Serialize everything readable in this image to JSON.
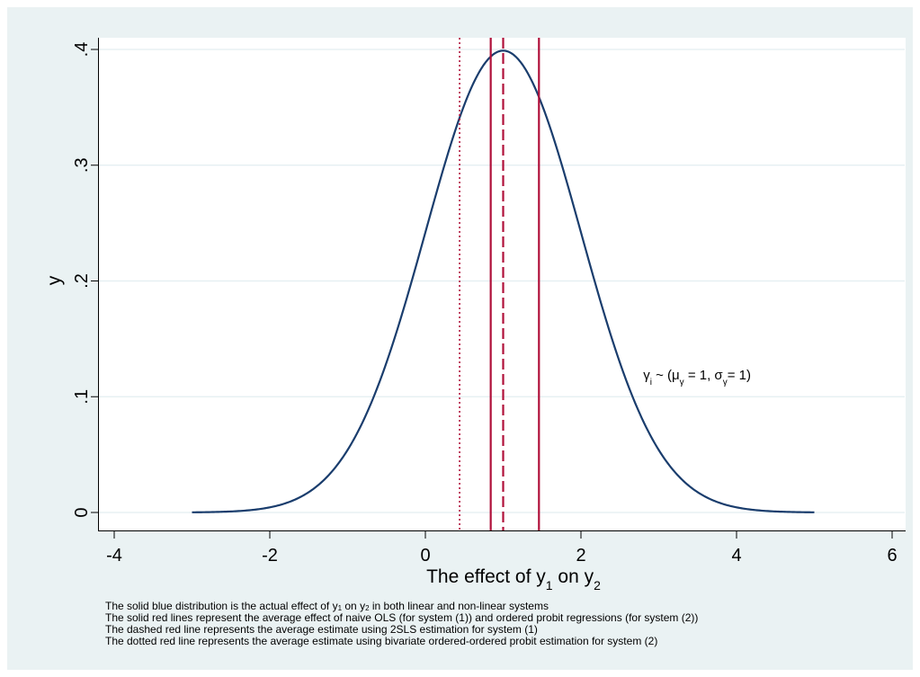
{
  "chart_data": {
    "type": "line",
    "xlabel_parts": [
      "The effect of y",
      "1",
      " on y",
      "2"
    ],
    "ylabel": "y",
    "xlim": [
      -4,
      6
    ],
    "ylim": [
      0,
      0.4
    ],
    "xticks": [
      -4,
      -2,
      0,
      2,
      4,
      6
    ],
    "xtick_labels": [
      "-4",
      "-2",
      "0",
      "2",
      "4",
      "6"
    ],
    "yticks": [
      0,
      0.1,
      0.2,
      0.3,
      0.4
    ],
    "ytick_labels": [
      "0",
      ".1",
      ".2",
      ".3",
      ".4"
    ],
    "grid": "horizontal",
    "series": [
      {
        "kind": "normal-density",
        "mean": 1,
        "sd": 1,
        "x_range": [
          -3,
          5
        ],
        "color": "#1a3d6d"
      }
    ],
    "vertical_lines": [
      {
        "x": 0.44,
        "style": "dotted",
        "color": "#b0103a"
      },
      {
        "x": 0.84,
        "style": "solid",
        "color": "#b0103a"
      },
      {
        "x": 1.0,
        "style": "dashed",
        "color": "#b0103a"
      },
      {
        "x": 1.46,
        "style": "solid",
        "color": "#b0103a"
      }
    ],
    "annotation": {
      "x": 2.8,
      "y": 0.115,
      "parts": [
        {
          "t": "γ"
        },
        {
          "t": "i",
          "sub": true
        },
        {
          "t": " ~ (μ"
        },
        {
          "t": "γ",
          "sub": true
        },
        {
          "t": " = 1, σ"
        },
        {
          "t": "γ",
          "sub": true
        },
        {
          "t": "= 1)"
        }
      ]
    }
  },
  "notes": [
    [
      {
        "t": "The solid blue distribution is the actual effect of y"
      },
      {
        "t": "1",
        "sub": true
      },
      {
        "t": " on y"
      },
      {
        "t": "2",
        "sub": true
      },
      {
        "t": " in both linear and non-linear systems"
      }
    ],
    [
      {
        "t": "The solid red lines represent the average effect of naive OLS (for system (1)) and ordered probit regressions (for system (2))"
      }
    ],
    [
      {
        "t": "The dashed red line represents the average estimate using 2SLS estimation for system (1)"
      }
    ],
    [
      {
        "t": "The dotted red line represents the average estimate using bivariate ordered-ordered probit estimation for system (2)"
      }
    ]
  ]
}
